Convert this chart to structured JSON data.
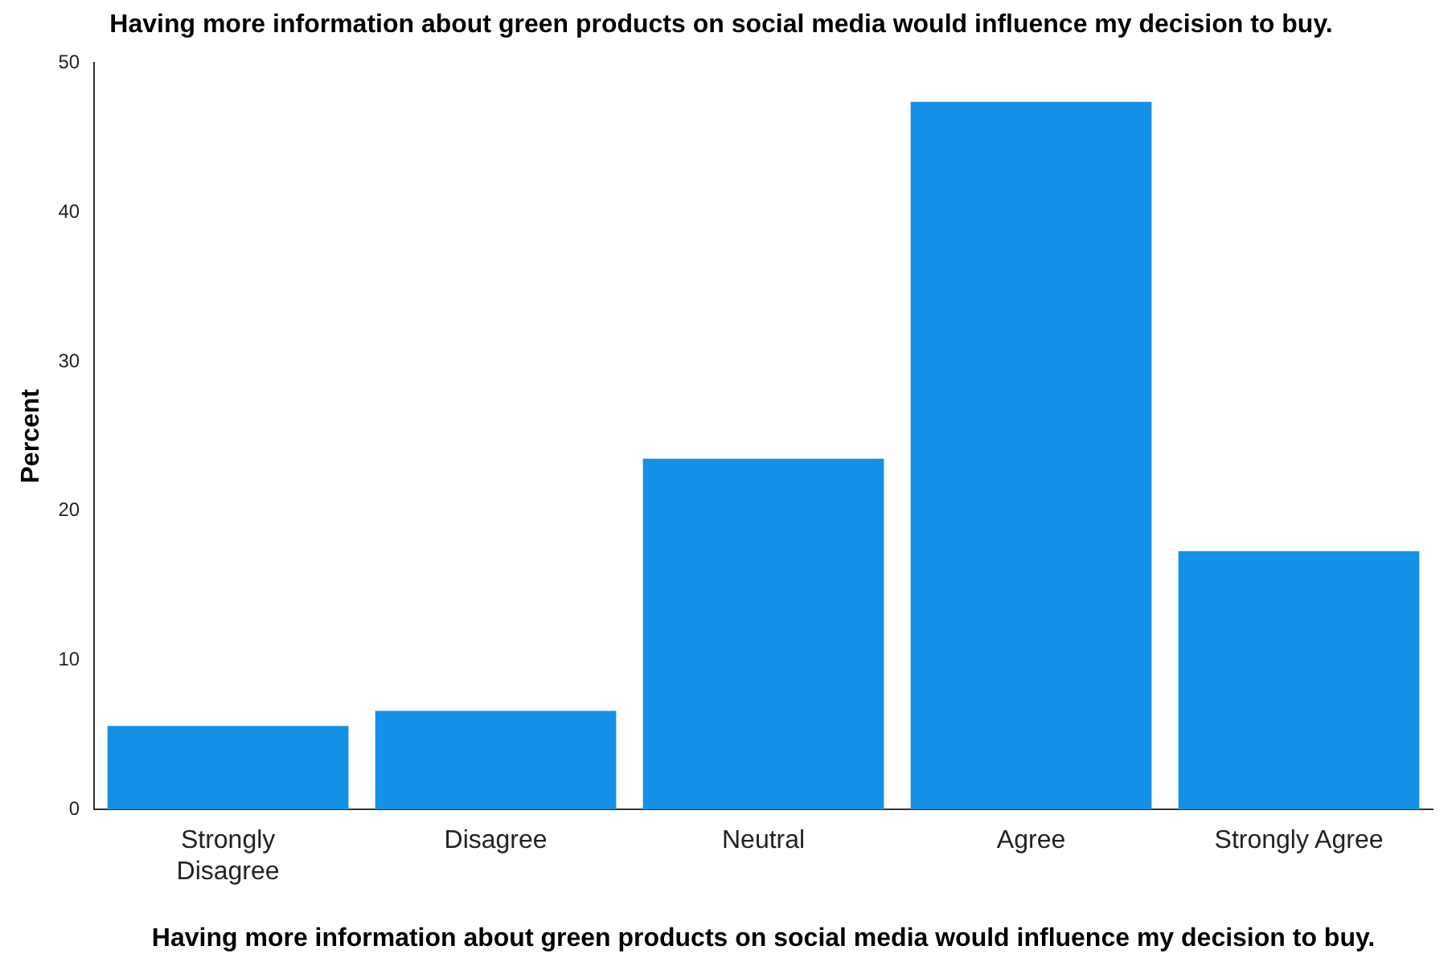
{
  "chart_data": {
    "type": "bar",
    "title": "Having more information about green products on social media would influence my decision to buy.",
    "xlabel": "Having more information about green products on social media would influence my decision to buy.",
    "ylabel": "Percent",
    "categories": [
      "Strongly Disagree",
      "Disagree",
      "Neutral",
      "Agree",
      "Strongly Agree"
    ],
    "values": [
      5.6,
      6.6,
      23.5,
      47.4,
      17.3
    ],
    "color": "#1490e6",
    "ylim": [
      0,
      50
    ],
    "yticks": [
      0,
      10,
      20,
      30,
      40,
      50
    ],
    "grid": false,
    "legend": false
  }
}
